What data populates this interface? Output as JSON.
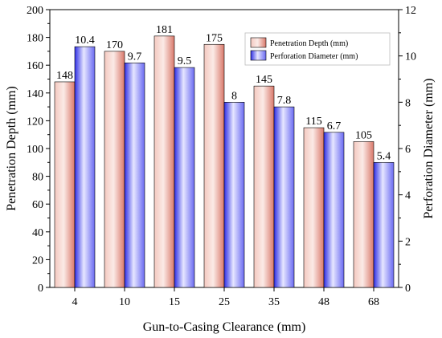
{
  "chart_data": {
    "type": "bar",
    "title": "",
    "xlabel": "Gun-to-Casing Clearance (mm)",
    "ylabel_left": "Penetration Depth (mm)",
    "ylabel_right": "Perforation Diameter (mm)",
    "categories": [
      "4",
      "10",
      "15",
      "25",
      "35",
      "48",
      "68"
    ],
    "ylim_left": [
      0,
      200
    ],
    "ylim_right": [
      0,
      12
    ],
    "yticks_left": [
      "0",
      "20",
      "40",
      "60",
      "80",
      "100",
      "120",
      "140",
      "160",
      "180",
      "200"
    ],
    "yticks_right": [
      "0",
      "2",
      "4",
      "6",
      "8",
      "10",
      "12"
    ],
    "grid": false,
    "legend_position": "top-right",
    "series": [
      {
        "name": "Penetration Depth (mm)",
        "axis": "left",
        "values": [
          148,
          170,
          181,
          175,
          145,
          115,
          105
        ],
        "labels": [
          "148",
          "170",
          "181",
          "175",
          "145",
          "115",
          "105"
        ],
        "color": "#e8978a"
      },
      {
        "name": "Perforation Diameter (mm)",
        "axis": "right",
        "values": [
          10.4,
          9.7,
          9.5,
          8,
          7.8,
          6.7,
          5.4
        ],
        "labels": [
          "10.4",
          "9.7",
          "9.5",
          "8",
          "7.8",
          "6.7",
          "5.4"
        ],
        "color": "#5c5cf0"
      }
    ]
  }
}
